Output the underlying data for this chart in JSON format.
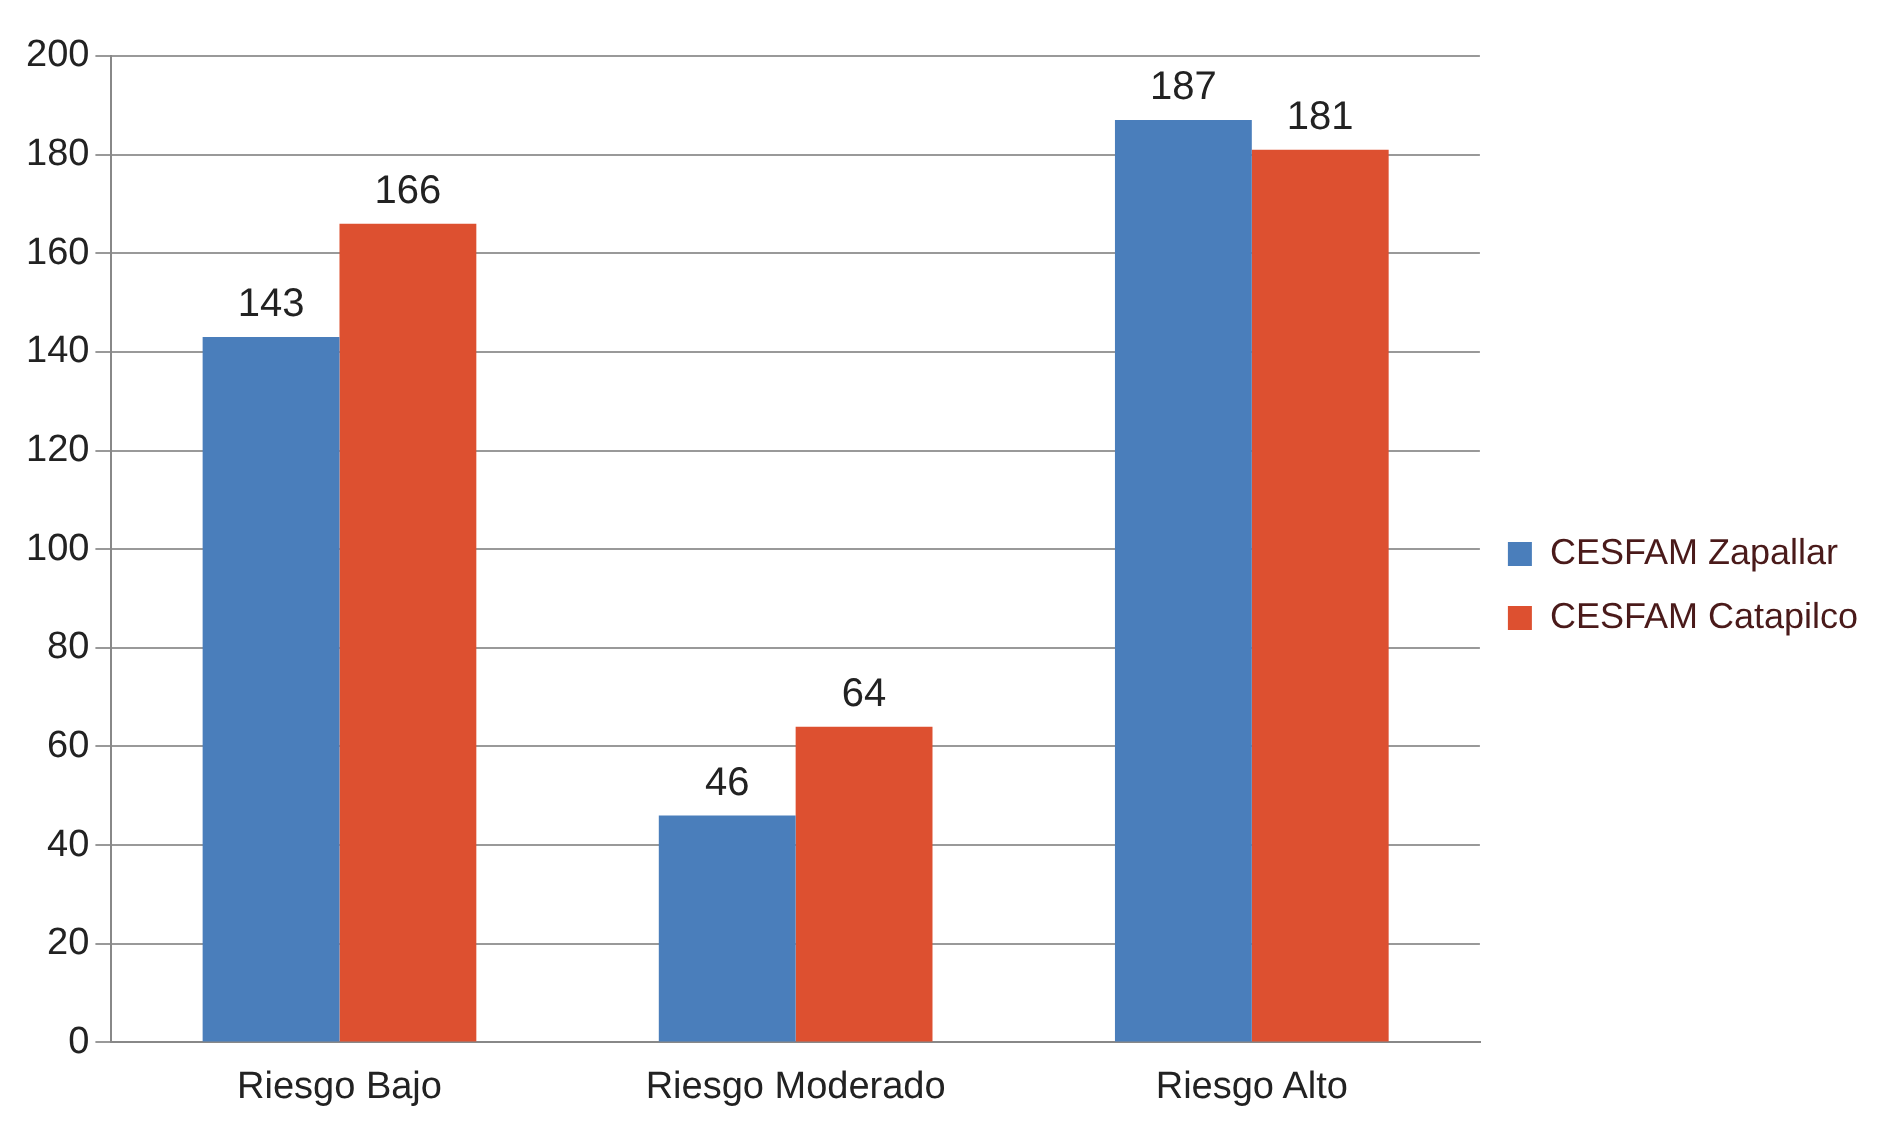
{
  "chart_data": {
    "type": "bar",
    "categories": [
      "Riesgo Bajo",
      "Riesgo Moderado",
      "Riesgo Alto"
    ],
    "series": [
      {
        "name": "CESFAM Zapallar",
        "color": "#4a7ebb",
        "values": [
          143,
          46,
          187
        ]
      },
      {
        "name": "CESFAM Catapilco",
        "color": "#dd5030",
        "values": [
          166,
          64,
          181
        ]
      }
    ],
    "ylim": [
      0,
      200
    ],
    "yticks": [
      0,
      20,
      40,
      60,
      80,
      100,
      120,
      140,
      160,
      180,
      200
    ],
    "grid": "y",
    "legend": "right",
    "data_labels": true
  }
}
